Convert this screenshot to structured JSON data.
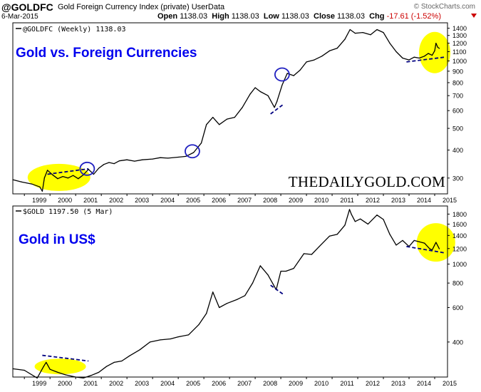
{
  "header": {
    "symbol": "@GOLDFC",
    "name": "Gold Foreign Currency Index (private) UserData",
    "date": "6-Mar-2015",
    "brand": "© StockCharts.com",
    "open_label": "Open",
    "open": "1138.03",
    "high_label": "High",
    "high": "1138.03",
    "low_label": "Low",
    "low": "1138.03",
    "close_label": "Close",
    "close": "1138.03",
    "chg_label": "Chg",
    "chg": "-17.61 (-1.52%)"
  },
  "colors": {
    "line": "#000000",
    "highlight": "#ffff00",
    "circle": "#2020c0",
    "trend": "#000080",
    "axis": "#000000",
    "negative": "#cc0000"
  },
  "chart_data": [
    {
      "type": "line",
      "legend": "@GOLDFC (Weekly) 1138.03",
      "title": "Gold vs. Foreign Currencies",
      "watermark": "THEDAILYGOLD.COM",
      "y_scale": "log",
      "ylim": [
        255,
        1480
      ],
      "yticks": [
        300,
        400,
        500,
        600,
        700,
        800,
        900,
        1000,
        1100,
        1200,
        1300,
        1400
      ],
      "xticks": [
        "1999",
        "2000",
        "2001",
        "2002",
        "2003",
        "2004",
        "2005",
        "2006",
        "2007",
        "2008",
        "2009",
        "2010",
        "2011",
        "2012",
        "2013",
        "2014",
        "2015"
      ],
      "xlim": [
        1998.55,
        2015.5
      ],
      "grid": false,
      "series": [
        {
          "x": [
            1998.55,
            1998.9,
            1999.3,
            1999.6,
            1999.7,
            1999.78,
            1999.9,
            2000.1,
            2000.3,
            2000.5,
            2000.7,
            2000.9,
            2001.1,
            2001.3,
            2001.5,
            2001.7,
            2001.9,
            2002.1,
            2002.3,
            2002.5,
            2002.7,
            2003.0,
            2003.3,
            2003.6,
            2004.0,
            2004.3,
            2004.6,
            2005.0,
            2005.3,
            2005.6,
            2005.9,
            2006.1,
            2006.35,
            2006.6,
            2006.9,
            2007.2,
            2007.5,
            2007.8,
            2008.0,
            2008.2,
            2008.5,
            2008.75,
            2008.85,
            2009.05,
            2009.25,
            2009.5,
            2009.75,
            2010.0,
            2010.3,
            2010.6,
            2010.9,
            2011.2,
            2011.5,
            2011.7,
            2011.9,
            2012.2,
            2012.5,
            2012.75,
            2013.0,
            2013.25,
            2013.5,
            2013.75,
            2014.0,
            2014.2,
            2014.4,
            2014.6,
            2014.75,
            2014.9,
            2015.0,
            2015.05,
            2015.12,
            2015.18
          ],
          "values": [
            295,
            288,
            282,
            274,
            262,
            300,
            325,
            310,
            298,
            305,
            300,
            308,
            298,
            310,
            328,
            312,
            332,
            345,
            352,
            348,
            358,
            362,
            357,
            362,
            365,
            370,
            368,
            372,
            375,
            390,
            430,
            520,
            560,
            520,
            550,
            560,
            620,
            710,
            760,
            730,
            700,
            620,
            660,
            780,
            880,
            860,
            910,
            990,
            1010,
            1050,
            1110,
            1140,
            1250,
            1380,
            1330,
            1340,
            1310,
            1380,
            1340,
            1200,
            1100,
            1030,
            1010,
            1040,
            1030,
            1050,
            1080,
            1060,
            1110,
            1200,
            1150,
            1138
          ]
        }
      ],
      "circles": [
        {
          "x": 2001.45,
          "y": 330
        },
        {
          "x": 2005.55,
          "y": 395
        },
        {
          "x": 2009.05,
          "y": 870
        }
      ],
      "highlights": [
        {
          "x": 2000.35,
          "y": 302
        },
        {
          "x": 2015.0,
          "y": 1090
        }
      ],
      "trendlines": [
        {
          "x1": 1999.9,
          "y1": 312,
          "x2": 2001.5,
          "y2": 330
        },
        {
          "x1": 2008.6,
          "y1": 580,
          "x2": 2009.1,
          "y2": 640
        },
        {
          "x1": 2013.9,
          "y1": 990,
          "x2": 2015.4,
          "y2": 1040
        }
      ]
    },
    {
      "type": "line",
      "legend": "$GOLD 1197.50 (5 Mar)",
      "title": "Gold in US$",
      "y_scale": "log",
      "ylim": [
        265,
        1980
      ],
      "yticks": [
        400,
        600,
        800,
        1000,
        1200,
        1400,
        1600,
        1800
      ],
      "xticks": [
        "1999",
        "2000",
        "2001",
        "2002",
        "2003",
        "2004",
        "2005",
        "2006",
        "2007",
        "2008",
        "2009",
        "2010",
        "2011",
        "2012",
        "2013",
        "2014",
        "2015"
      ],
      "xlim": [
        1998.55,
        2015.5
      ],
      "grid": false,
      "series": [
        {
          "x": [
            1998.55,
            1999.0,
            1999.5,
            1999.75,
            1999.85,
            2000.0,
            2000.3,
            2000.6,
            2001.0,
            2001.3,
            2001.6,
            2001.9,
            2002.2,
            2002.5,
            2002.8,
            2003.1,
            2003.5,
            2003.9,
            2004.3,
            2004.7,
            2005.0,
            2005.4,
            2005.8,
            2006.1,
            2006.35,
            2006.6,
            2006.9,
            2007.3,
            2007.6,
            2007.9,
            2008.2,
            2008.5,
            2008.82,
            2009.0,
            2009.2,
            2009.5,
            2009.9,
            2010.2,
            2010.5,
            2010.9,
            2011.2,
            2011.5,
            2011.68,
            2011.75,
            2011.9,
            2012.1,
            2012.4,
            2012.75,
            2013.0,
            2013.25,
            2013.5,
            2013.75,
            2014.0,
            2014.2,
            2014.4,
            2014.6,
            2014.8,
            2014.9,
            2015.05,
            2015.18
          ],
          "values": [
            292,
            287,
            262,
            300,
            315,
            290,
            280,
            272,
            265,
            262,
            270,
            280,
            300,
            315,
            320,
            340,
            365,
            400,
            410,
            415,
            425,
            435,
            490,
            560,
            720,
            600,
            630,
            660,
            690,
            800,
            980,
            880,
            740,
            920,
            920,
            950,
            1130,
            1120,
            1230,
            1390,
            1420,
            1580,
            1900,
            1800,
            1650,
            1700,
            1600,
            1780,
            1690,
            1420,
            1250,
            1320,
            1230,
            1320,
            1300,
            1280,
            1200,
            1180,
            1290,
            1197
          ]
        }
      ],
      "highlights": [
        {
          "x": 2000.4,
          "y": 300
        },
        {
          "x": 2015.05,
          "y": 1290
        }
      ],
      "trendlines": [
        {
          "x1": 1999.7,
          "y1": 342,
          "x2": 2001.5,
          "y2": 320
        },
        {
          "x1": 2008.6,
          "y1": 780,
          "x2": 2009.1,
          "y2": 700
        },
        {
          "x1": 2013.9,
          "y1": 1230,
          "x2": 2015.4,
          "y2": 1140
        }
      ]
    }
  ]
}
